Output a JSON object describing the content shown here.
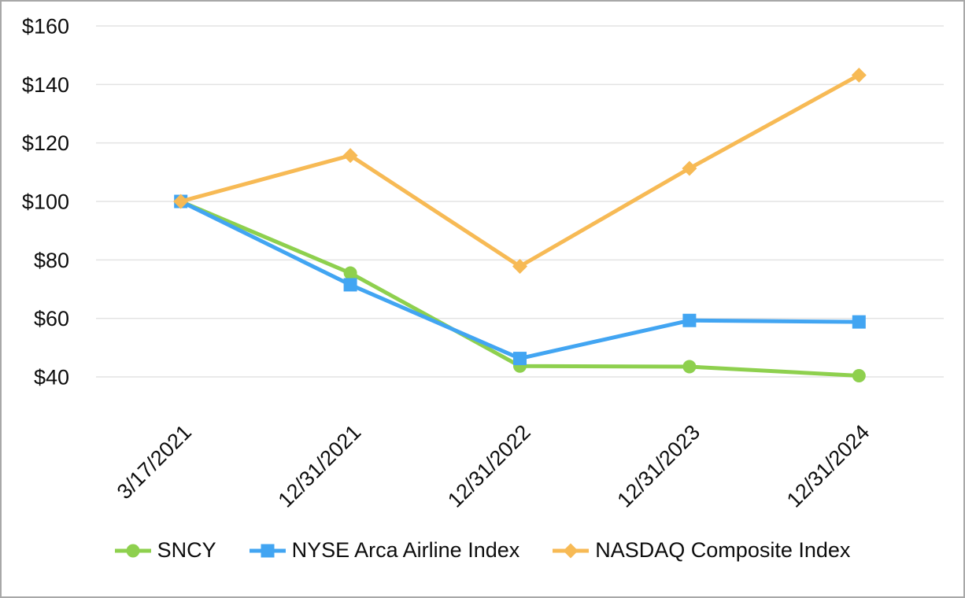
{
  "chart_data": {
    "type": "line",
    "title": "",
    "categories": [
      "3/17/2021",
      "12/31/2021",
      "12/31/2022",
      "12/31/2023",
      "12/31/2024"
    ],
    "y_ticks": [
      {
        "label": "$160",
        "value": 160
      },
      {
        "label": "$140",
        "value": 140
      },
      {
        "label": "$120",
        "value": 120
      },
      {
        "label": "$100",
        "value": 100
      },
      {
        "label": "$80",
        "value": 80
      },
      {
        "label": "$60",
        "value": 60
      },
      {
        "label": "$40",
        "value": 40
      }
    ],
    "ylim": [
      40,
      160
    ],
    "grid": true,
    "legend_position": "bottom",
    "series": [
      {
        "name": "SNCY",
        "marker": "circle",
        "color": "#8ed04e",
        "values": [
          100,
          75.5,
          43.7,
          43.5,
          40.4
        ]
      },
      {
        "name": "NYSE Arca Airline Index",
        "marker": "square",
        "color": "#42a5f2",
        "values": [
          100,
          71.5,
          46.3,
          59.3,
          58.8
        ]
      },
      {
        "name": "NASDAQ Composite Index",
        "marker": "diamond",
        "color": "#f7ba55",
        "values": [
          100,
          115.7,
          77.8,
          111.3,
          143.2
        ]
      }
    ],
    "colors": {
      "gridline": "#e3e3e3",
      "text": "#0d0d0d",
      "frame_border": "#a8a8a8",
      "background": "#ffffff"
    }
  }
}
